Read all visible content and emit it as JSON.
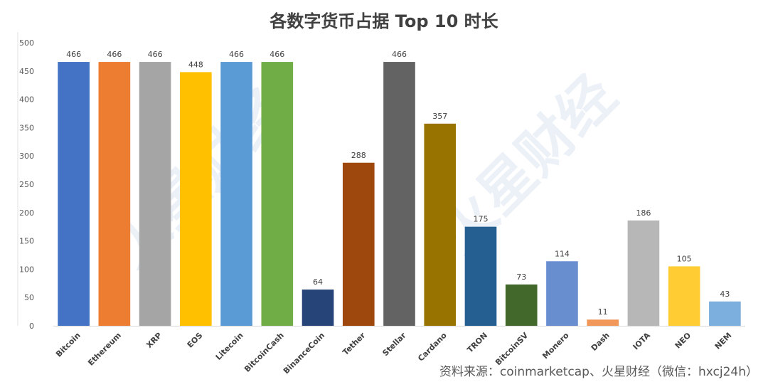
{
  "chart_data": {
    "type": "bar",
    "title": "各数字货币占据 Top 10 时长",
    "categories": [
      "Bitcoin",
      "Ethereum",
      "XRP",
      "EOS",
      "Litecoin",
      "BitcoinCash",
      "BinanceCoin",
      "Tether",
      "Stellar",
      "Cardano",
      "TRON",
      "BitcoinSV",
      "Monero",
      "Dash",
      "IOTA",
      "NEO",
      "NEM"
    ],
    "values": [
      466,
      466,
      466,
      448,
      466,
      466,
      64,
      288,
      466,
      357,
      175,
      73,
      114,
      11,
      186,
      105,
      43
    ],
    "colors": [
      "#4472C4",
      "#ED7D31",
      "#A5A5A5",
      "#FFC000",
      "#5B9BD5",
      "#70AD47",
      "#264478",
      "#9E480E",
      "#636363",
      "#997300",
      "#255E91",
      "#43682B",
      "#698ED0",
      "#F1975A",
      "#B7B7B7",
      "#FFCD33",
      "#7CAFDD"
    ],
    "ylim": [
      0,
      500
    ],
    "yticks": [
      0,
      50,
      100,
      150,
      200,
      250,
      300,
      350,
      400,
      450,
      500
    ],
    "xlabel": "",
    "ylabel": "",
    "grid": false,
    "legend": "none"
  },
  "source_note": "资料来源：coinmarketcap、火星财经（微信：hxcj24h）",
  "watermark": "火星财经"
}
